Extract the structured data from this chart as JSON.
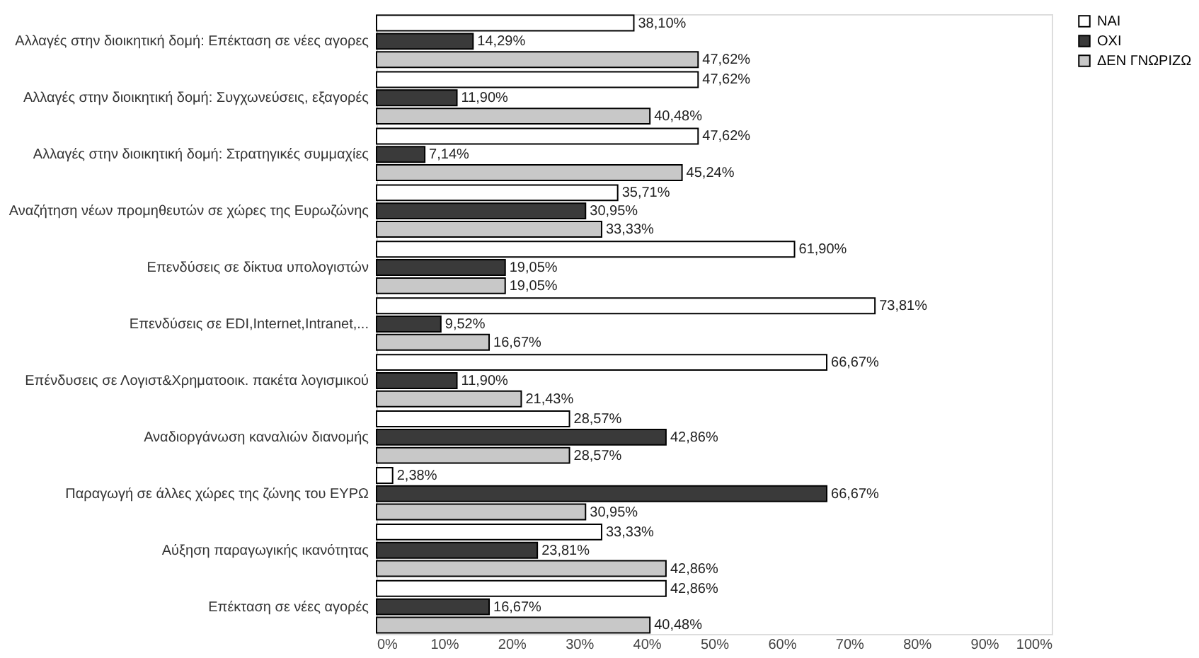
{
  "chart_data": {
    "type": "bar",
    "orientation": "horizontal",
    "categories": [
      "Αλλαγές στην διοικητική δομή: Επέκταση σε νέες αγορες",
      "Αλλαγές στην διοικητική δομή: Συγχωνεύσεις, εξαγορές",
      "Αλλαγές στην διοικητική δομή: Στρατηγικές συμμαχίες",
      "Αναζήτηση νέων προμηθευτών σε χώρες της Ευρωζώνης",
      "Επενδύσεις σε δίκτυα υπολογιστών",
      "Επενδύσεις σε EDI,Internet,Intranet,...",
      "Επένδυσεις σε Λογιστ&Χρηματοοικ. πακέτα λογισμικού",
      "Αναδιοργάνωση καναλιών διανομής",
      "Παραγωγή σε άλλες χώρες της ζώνης του ΕΥΡΩ",
      "Αύξηση παραγωγικής ικανότητας",
      "Επέκταση σε νέες αγορές"
    ],
    "series": [
      {
        "name": "ΝΑΙ",
        "color": "#ffffff",
        "values": [
          38.1,
          47.62,
          47.62,
          35.71,
          61.9,
          73.81,
          66.67,
          28.57,
          2.38,
          33.33,
          42.86
        ],
        "value_labels": [
          "38,10%",
          "47,62%",
          "47,62%",
          "35,71%",
          "61,90%",
          "73,81%",
          "66,67%",
          "28,57%",
          "2,38%",
          "33,33%",
          "42,86%"
        ]
      },
      {
        "name": "ΟΧΙ",
        "color": "#3a3a3a",
        "values": [
          14.29,
          11.9,
          7.14,
          30.95,
          19.05,
          9.52,
          11.9,
          42.86,
          66.67,
          23.81,
          16.67
        ],
        "value_labels": [
          "14,29%",
          "11,90%",
          "7,14%",
          "30,95%",
          "19,05%",
          "9,52%",
          "11,90%",
          "42,86%",
          "66,67%",
          "23,81%",
          "16,67%"
        ]
      },
      {
        "name": "ΔΕΝ ΓΝΩΡΙΖΩ",
        "color": "#c8c8c8",
        "values": [
          47.62,
          40.48,
          45.24,
          33.33,
          19.05,
          16.67,
          21.43,
          28.57,
          30.95,
          42.86,
          40.48
        ],
        "value_labels": [
          "47,62%",
          "40,48%",
          "45,24%",
          "33,33%",
          "19,05%",
          "16,67%",
          "21,43%",
          "28,57%",
          "30,95%",
          "42,86%",
          "40,48%"
        ]
      }
    ],
    "xlim": [
      0,
      100
    ],
    "xticks": [
      {
        "value": 0,
        "label": "0%"
      },
      {
        "value": 10,
        "label": "10%"
      },
      {
        "value": 20,
        "label": "20%"
      },
      {
        "value": 30,
        "label": "30%"
      },
      {
        "value": 40,
        "label": "40%"
      },
      {
        "value": 50,
        "label": "50%"
      },
      {
        "value": 60,
        "label": "60%"
      },
      {
        "value": 70,
        "label": "70%"
      },
      {
        "value": 80,
        "label": "80%"
      },
      {
        "value": 90,
        "label": "90%"
      },
      {
        "value": 100,
        "label": "100%"
      }
    ],
    "grid": false,
    "legend": "right"
  }
}
